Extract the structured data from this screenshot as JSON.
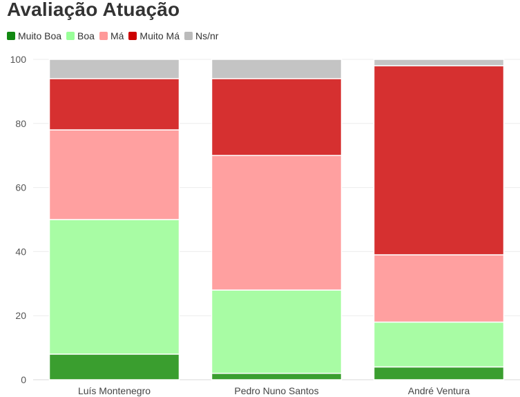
{
  "chart_data": {
    "type": "bar",
    "stacked": true,
    "title": "Avaliação Atuação",
    "categories": [
      "Luís Montenegro",
      "Pedro Nuno Santos",
      "André Ventura"
    ],
    "series": [
      {
        "name": "Muito Boa",
        "color": "#3a9e2f",
        "values": [
          8,
          2,
          4
        ]
      },
      {
        "name": "Boa",
        "color": "#a8fca4",
        "values": [
          42,
          26,
          14
        ]
      },
      {
        "name": "Má",
        "color": "#ffa0a0",
        "values": [
          28,
          42,
          21
        ]
      },
      {
        "name": "Muito Má",
        "color": "#d63030",
        "values": [
          16,
          24,
          59
        ]
      },
      {
        "name": "Ns/nr",
        "color": "#c4c4c4",
        "values": [
          6,
          6,
          2
        ]
      }
    ],
    "legend_colors": {
      "Muito Boa": "#118811",
      "Boa": "#99ff99",
      "Má": "#ff9999",
      "Muito Má": "#cc0000",
      "Ns/nr": "#bbbbbb"
    },
    "ylim": [
      0,
      100
    ],
    "yticks": [
      0,
      20,
      40,
      60,
      80,
      100
    ],
    "grid": true,
    "legend_position": "top-left"
  }
}
